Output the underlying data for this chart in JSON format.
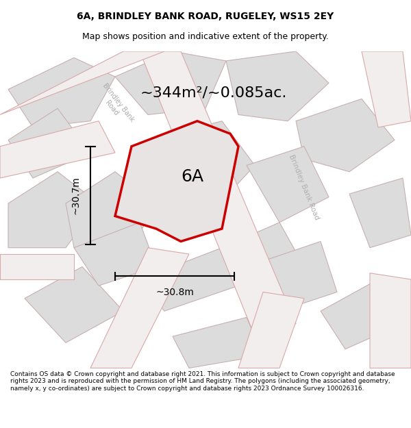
{
  "title": "6A, BRINDLEY BANK ROAD, RUGELEY, WS15 2EY",
  "subtitle": "Map shows position and indicative extent of the property.",
  "area_text": "~344m²/~0.085ac.",
  "label_6a": "6A",
  "dim_vertical": "~30.7m",
  "dim_horizontal": "~30.8m",
  "footer": "Contains OS data © Crown copyright and database right 2021. This information is subject to Crown copyright and database rights 2023 and is reproduced with the permission of HM Land Registry. The polygons (including the associated geometry, namely x, y co-ordinates) are subject to Crown copyright and database rights 2023 Ordnance Survey 100026316.",
  "map_bg": "#e8e8e8",
  "property_color": "#cc0000",
  "block_fill": "#dcdcdc",
  "block_edge": "#c8b0b0",
  "road_fill": "#f2eeee",
  "road_edge": "#d9a8a8",
  "title_fontsize": 10,
  "subtitle_fontsize": 9,
  "area_fontsize": 16,
  "label_fontsize": 18,
  "dim_fontsize": 10,
  "footer_fontsize": 6.5
}
